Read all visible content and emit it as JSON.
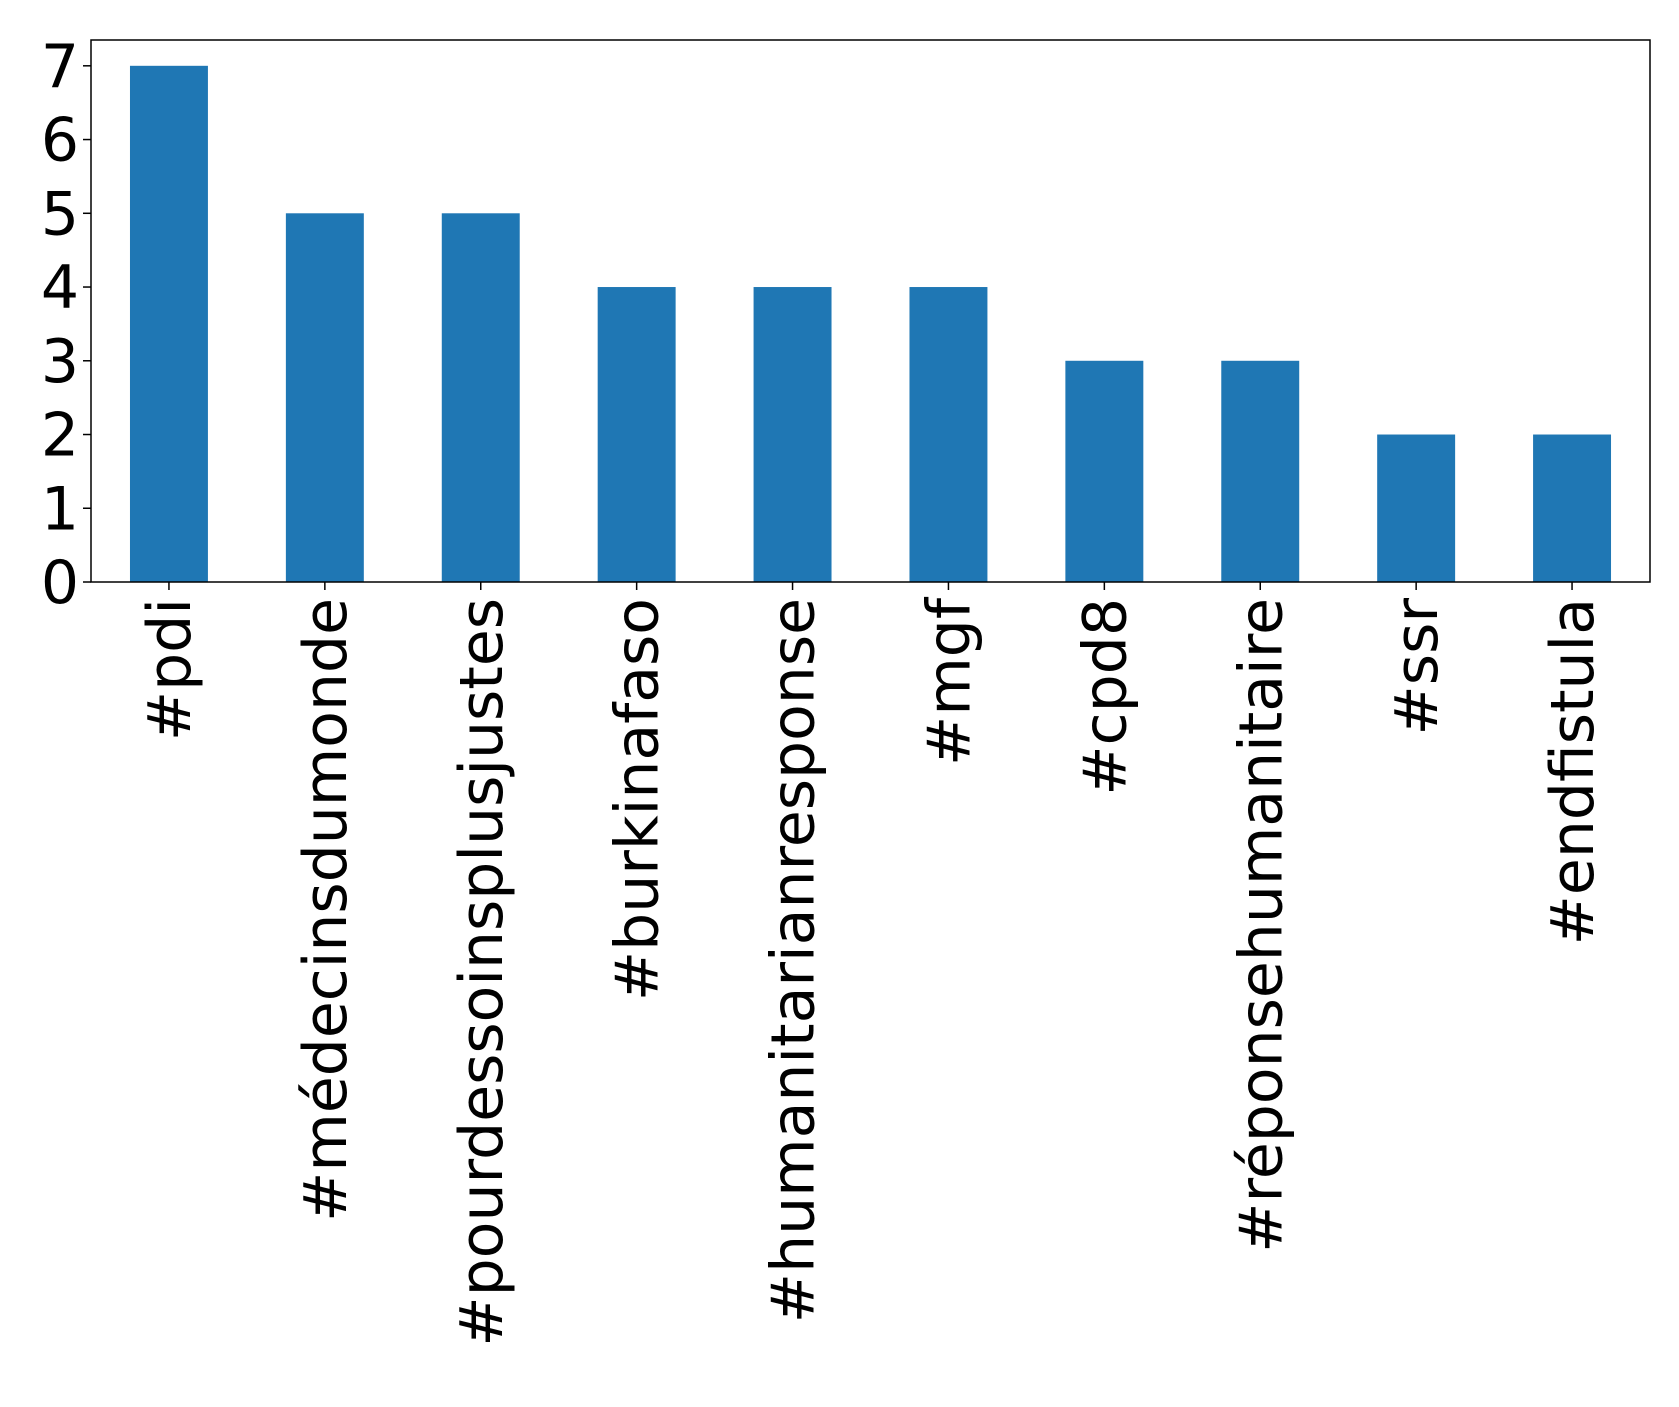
{
  "chart_data": {
    "type": "bar",
    "categories": [
      "#pdi",
      "#médecinsdumonde",
      "#pourdessoinsplusjustes",
      "#burkinafaso",
      "#humanitarianresponse",
      "#mgf",
      "#cpd8",
      "#réponsehumanitaire",
      "#ssr",
      "#endfistula"
    ],
    "values": [
      7,
      5,
      5,
      4,
      4,
      4,
      3,
      3,
      2,
      2
    ],
    "yticks": [
      0,
      1,
      2,
      3,
      4,
      5,
      6,
      7
    ],
    "ylim": [
      0,
      7.35
    ],
    "title": "",
    "xlabel": "",
    "ylabel": "",
    "grid": false,
    "legend": "none",
    "bar_color": "#1f77b4",
    "axis_color": "#000000"
  }
}
